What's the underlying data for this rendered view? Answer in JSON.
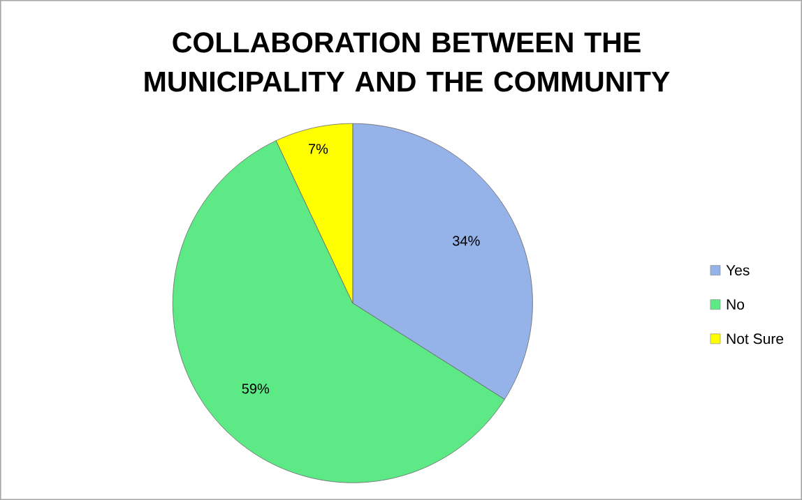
{
  "chart_data": {
    "type": "pie",
    "title": "COLLABORATION BETWEEN THE MUNICIPALITY AND THE COMMUNITY",
    "categories": [
      "Yes",
      "No",
      "Not Sure"
    ],
    "values": [
      34,
      59,
      7
    ],
    "value_labels": [
      "34%",
      "59%",
      "7%"
    ],
    "colors": [
      "#95b3e8",
      "#5ee987",
      "#ffff00"
    ],
    "legend": "right"
  }
}
